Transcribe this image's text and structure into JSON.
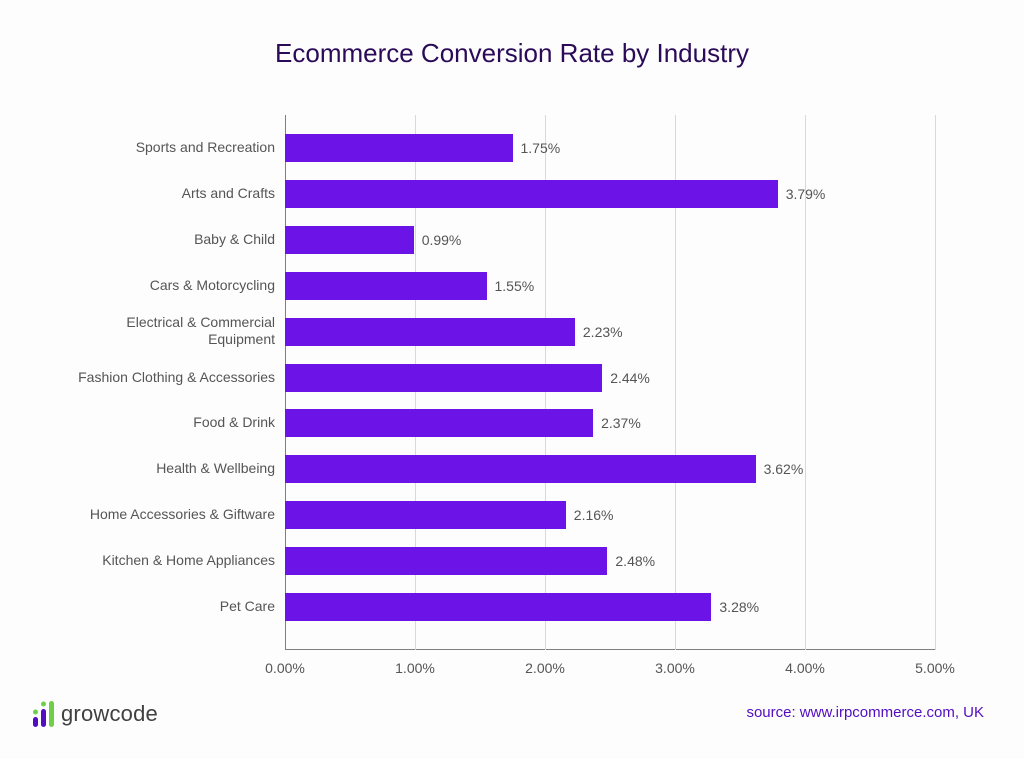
{
  "chart": {
    "type": "bar-horizontal",
    "title": "Ecommerce Conversion Rate by Industry",
    "title_fontsize": 26,
    "title_color": "#2b0a57",
    "background_color": "#fdfdfd",
    "bar_color": "#6c13e8",
    "grid_color": "#d9d9d9",
    "axis_color": "#808080",
    "label_color": "#555555",
    "xmax": 5.0,
    "xticks": [
      "0.00%",
      "1.00%",
      "2.00%",
      "3.00%",
      "4.00%",
      "5.00%"
    ],
    "label_fontsize": 14,
    "value_fontsize": 14,
    "categories": [
      {
        "label": "Sports and Recreation",
        "value": 1.75,
        "value_label": "1.75%"
      },
      {
        "label": "Arts and Crafts",
        "value": 3.79,
        "value_label": "3.79%"
      },
      {
        "label": "Baby & Child",
        "value": 0.99,
        "value_label": "0.99%"
      },
      {
        "label": "Cars & Motorcycling",
        "value": 1.55,
        "value_label": "1.55%"
      },
      {
        "label": "Electrical & Commercial\nEquipment",
        "value": 2.23,
        "value_label": "2.23%"
      },
      {
        "label": "Fashion Clothing & Accessories",
        "value": 2.44,
        "value_label": "2.44%"
      },
      {
        "label": "Food & Drink",
        "value": 2.37,
        "value_label": "2.37%"
      },
      {
        "label": "Health & Wellbeing",
        "value": 3.62,
        "value_label": "3.62%"
      },
      {
        "label": "Home Accessories & Giftware",
        "value": 2.16,
        "value_label": "2.16%"
      },
      {
        "label": "Kitchen & Home Appliances",
        "value": 2.48,
        "value_label": "2.48%"
      },
      {
        "label": "Pet Care",
        "value": 3.28,
        "value_label": "3.28%"
      }
    ]
  },
  "logo": {
    "text": "growcode"
  },
  "source": {
    "text": "source: www.irpcommerce.com, UK",
    "color": "#520dc2"
  }
}
